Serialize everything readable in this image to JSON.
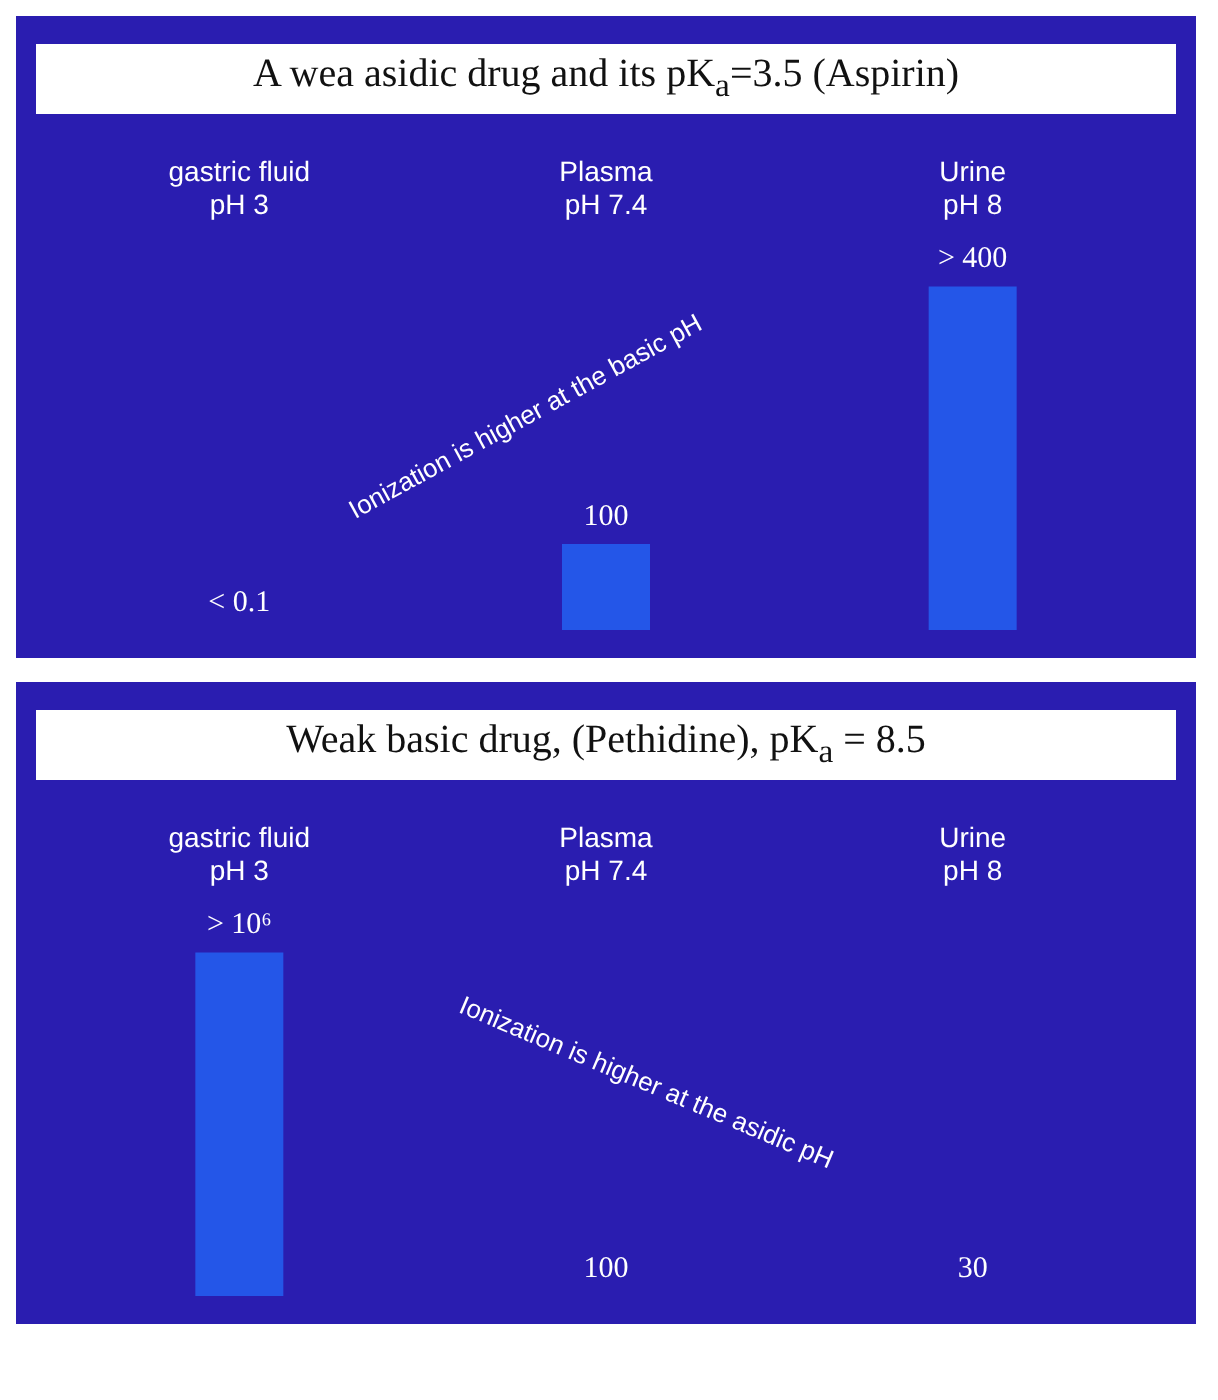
{
  "chart_data": [
    {
      "type": "bar",
      "title": "A wea asidic drug and its pK$_{a}$=3.5 (Aspirin)",
      "categories": [
        "gastric fluid\npH 3",
        "Plasma\npH 7.4",
        "Urine\npH 8"
      ],
      "values": [
        0.1,
        100,
        400
      ],
      "value_labels": [
        "< 0.1",
        "100",
        "> 400"
      ],
      "color": "#2456e8",
      "tick_labels": "x",
      "legend": false,
      "annotations": [
        "Ionization is higher at the basic pH"
      ]
    },
    {
      "type": "bar",
      "title": "Weak basic drug, (Pethidine), pK$_{a}$ = 8.5",
      "categories": [
        "gastric fluid\npH 3",
        "Plasma\npH 7.4",
        "Urine\npH 8"
      ],
      "values": [
        1000000,
        100,
        30
      ],
      "value_labels": [
        "> 10⁶",
        "100",
        "30"
      ],
      "color": "#2456e8",
      "tick_labels": "x",
      "legend": false,
      "annotations": [
        "Ionization is higher at the asidic pH"
      ]
    }
  ]
}
